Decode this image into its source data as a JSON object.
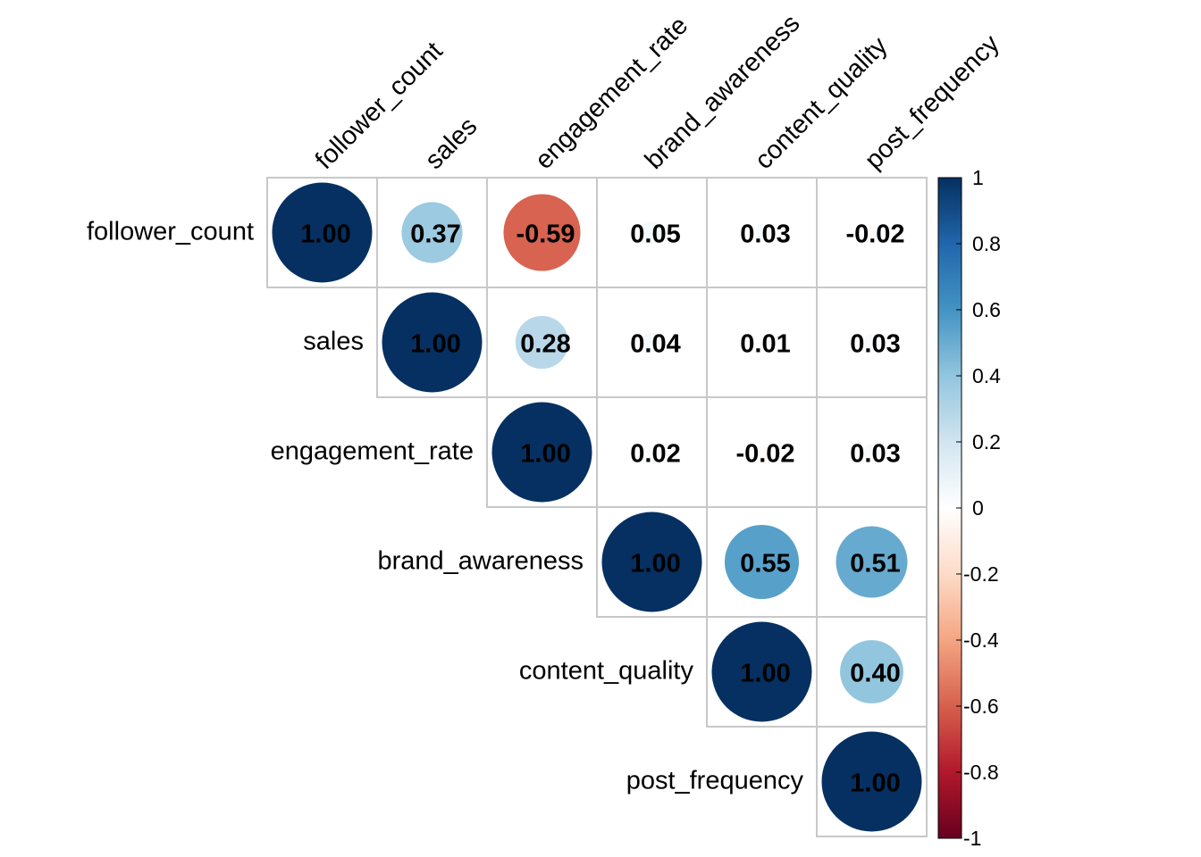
{
  "chart_data": {
    "type": "heatmap",
    "subtype": "correlation-upper-circle",
    "variables": [
      "follower_count",
      "sales",
      "engagement_rate",
      "brand_awareness",
      "content_quality",
      "post_frequency"
    ],
    "matrix": [
      [
        1.0,
        0.37,
        -0.59,
        0.05,
        0.03,
        -0.02
      ],
      [
        0.37,
        1.0,
        0.28,
        0.04,
        0.01,
        0.03
      ],
      [
        -0.59,
        0.28,
        1.0,
        0.02,
        -0.02,
        0.03
      ],
      [
        0.05,
        0.04,
        0.02,
        1.0,
        0.55,
        0.51
      ],
      [
        0.03,
        0.01,
        -0.02,
        0.55,
        1.0,
        0.4
      ],
      [
        -0.02,
        0.03,
        0.03,
        0.51,
        0.4,
        1.0
      ]
    ],
    "colorbar": {
      "range": [
        -1,
        1
      ],
      "tick_labels": [
        "1",
        "0.8",
        "0.6",
        "0.4",
        "0.2",
        "0",
        "-0.2",
        "-0.4",
        "-0.6",
        "-0.8",
        "-1"
      ],
      "stops": [
        "#67001F",
        "#B2182B",
        "#D6604D",
        "#F4A582",
        "#FDDBC7",
        "#FFFFFF",
        "#D1E5F0",
        "#92C5DE",
        "#4393C3",
        "#2166AC",
        "#053061"
      ]
    }
  }
}
